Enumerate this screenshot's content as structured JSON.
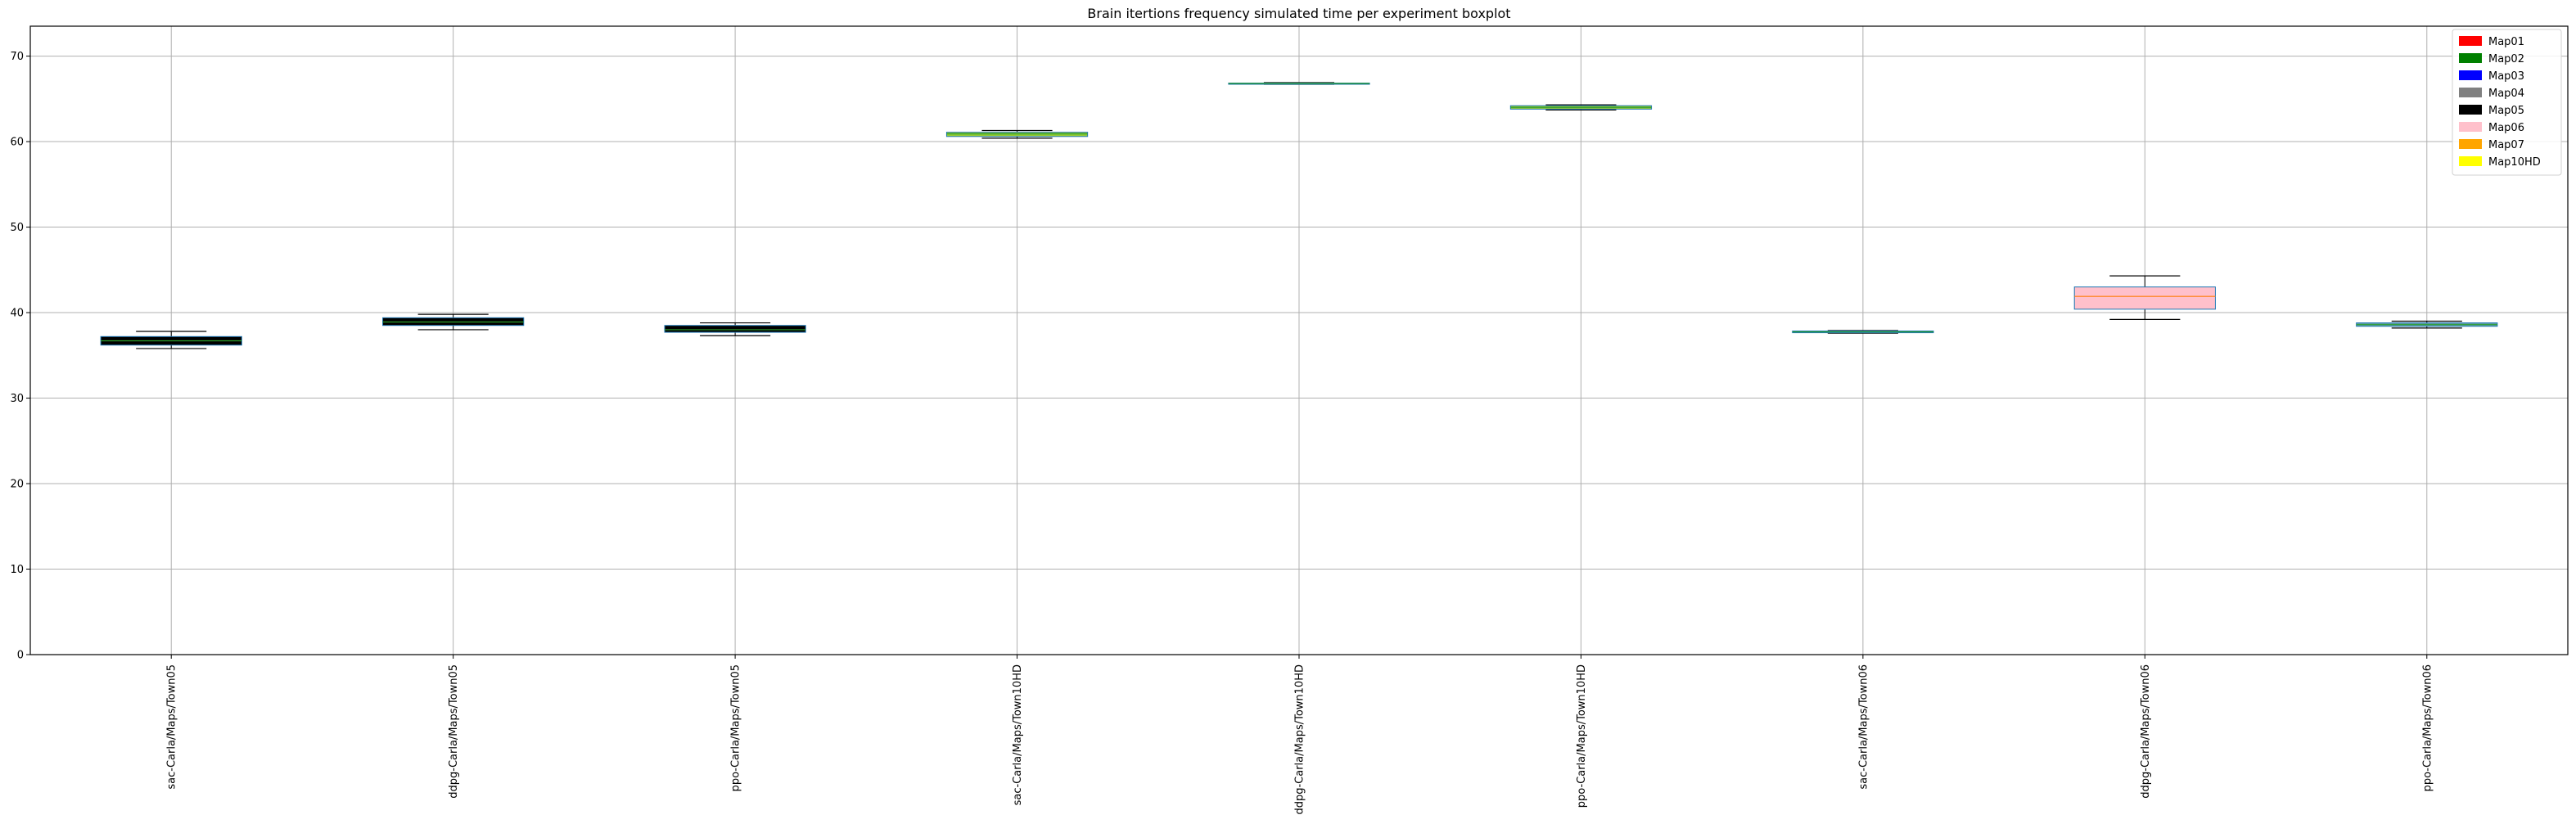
{
  "chart_data": {
    "type": "boxplot",
    "title": "Brain itertions frequency simulated time per experiment boxplot",
    "xlabel": "",
    "ylabel": "",
    "ylim": [
      0,
      73.5
    ],
    "yticks": [
      0,
      10,
      20,
      30,
      40,
      50,
      60,
      70
    ],
    "grid": true,
    "legend_position": "top-right",
    "legend": [
      {
        "label": "Map01",
        "color": "#ff0000"
      },
      {
        "label": "Map02",
        "color": "#008000"
      },
      {
        "label": "Map03",
        "color": "#0000ff"
      },
      {
        "label": "Map04",
        "color": "#808080"
      },
      {
        "label": "Map05",
        "color": "#000000"
      },
      {
        "label": "Map06",
        "color": "#ffc0cb"
      },
      {
        "label": "Map07",
        "color": "#ffa500"
      },
      {
        "label": "Map10HD",
        "color": "#ffff00"
      }
    ],
    "boxes": [
      {
        "label": "sac-Carla/Maps/Town05",
        "whisker_low": 35.8,
        "q1": 36.2,
        "median": 36.7,
        "q3": 37.2,
        "whisker_high": 37.8,
        "fill": "#000000",
        "edge": "#1f77b4",
        "median_color": "#2ca02c"
      },
      {
        "label": "ddpg-Carla/Maps/Town05",
        "whisker_low": 38.0,
        "q1": 38.5,
        "median": 38.9,
        "q3": 39.4,
        "whisker_high": 39.8,
        "fill": "#000000",
        "edge": "#1f77b4",
        "median_color": "#2ca02c"
      },
      {
        "label": "ppo-Carla/Maps/Town05",
        "whisker_low": 37.3,
        "q1": 37.7,
        "median": 38.0,
        "q3": 38.5,
        "whisker_high": 38.8,
        "fill": "#000000",
        "edge": "#1f77b4",
        "median_color": "#2ca02c"
      },
      {
        "label": "sac-Carla/Maps/Town10HD",
        "whisker_low": 60.4,
        "q1": 60.6,
        "median": 60.9,
        "q3": 61.1,
        "whisker_high": 61.3,
        "fill": "#9acd32",
        "edge": "#1f77b4",
        "median_color": "#2ca02c"
      },
      {
        "label": "ddpg-Carla/Maps/Town10HD",
        "whisker_low": 66.7,
        "q1": 66.75,
        "median": 66.8,
        "q3": 66.85,
        "whisker_high": 66.9,
        "fill": "#9acd32",
        "edge": "#1f77b4",
        "median_color": "#2ca02c"
      },
      {
        "label": "ppo-Carla/Maps/Town10HD",
        "whisker_low": 63.7,
        "q1": 63.8,
        "median": 64.0,
        "q3": 64.2,
        "whisker_high": 64.3,
        "fill": "#9acd32",
        "edge": "#1f77b4",
        "median_color": "#2ca02c"
      },
      {
        "label": "sac-Carla/Maps/Town06",
        "whisker_low": 37.6,
        "q1": 37.65,
        "median": 37.75,
        "q3": 37.85,
        "whisker_high": 37.9,
        "fill": "#5f9ea0",
        "edge": "#1f77b4",
        "median_color": "#2ca02c"
      },
      {
        "label": "ddpg-Carla/Maps/Town06",
        "whisker_low": 39.2,
        "q1": 40.4,
        "median": 41.9,
        "q3": 43.0,
        "whisker_high": 44.3,
        "fill": "#ffc0cb",
        "edge": "#1f77b4",
        "median_color": "#ff7f0e"
      },
      {
        "label": "ppo-Carla/Maps/Town06",
        "whisker_low": 38.2,
        "q1": 38.4,
        "median": 38.6,
        "q3": 38.8,
        "whisker_high": 39.0,
        "fill": "#5f9ea0",
        "edge": "#1f77b4",
        "median_color": "#2ca02c"
      }
    ]
  }
}
